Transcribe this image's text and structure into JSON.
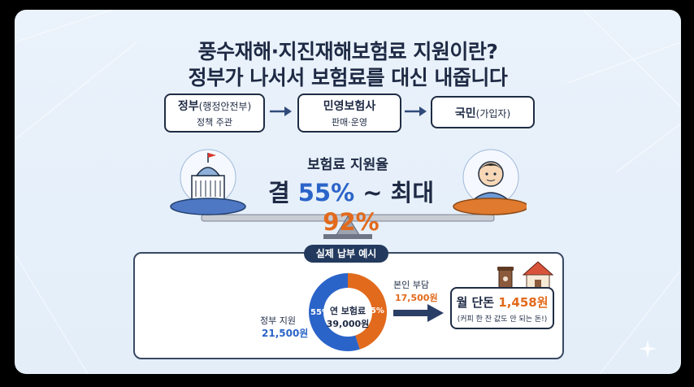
{
  "title": {
    "line1": "풍수재해·지진재해보험료 지원이란?",
    "line2": "정부가 나서서 보험료를 대신 내줍니다"
  },
  "flow": {
    "gov": {
      "name": "정부",
      "paren": "(행정안전부)",
      "role": "정책 주관"
    },
    "insurer": {
      "name": "민영보험사",
      "role": "판매·운영"
    },
    "citizen": {
      "name": "국민",
      "paren": "(가입자)"
    }
  },
  "support_rate": {
    "label": "보험료 지원율",
    "prefix": "결 ",
    "min": "55%",
    "mid": " ~ 최대 ",
    "max": "92%"
  },
  "example": {
    "tag": "실제 납부 예시",
    "gov_label": "정부 지원",
    "gov_amount": "21,500원",
    "gov_pct": "55%",
    "own_pct": "45%",
    "center_line1": "연 보험료",
    "center_line2": "39,000원",
    "own_label": "본인 부담",
    "own_amount": "17,500원",
    "monthly_prefix": "월 단돈 ",
    "monthly_amount": "1,458원",
    "monthly_note": "(커피 한 잔 값도 안 되는 돈!)"
  },
  "colors": {
    "gov_blue": "#2b64c9",
    "own_orange": "#e26a1c",
    "navy": "#1e2a44"
  },
  "icons": [
    "government-building-icon",
    "person-icon",
    "coffee-cup-icon",
    "house-icon",
    "arrow-right-icon",
    "sparkle-icon"
  ]
}
